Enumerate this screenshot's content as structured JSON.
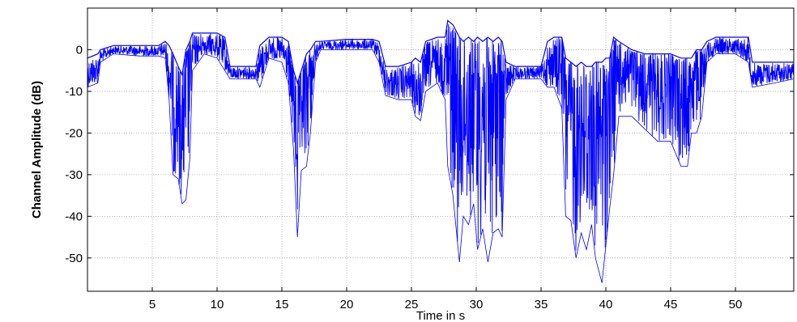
{
  "chart_data": {
    "type": "line",
    "title": "",
    "xlabel": "Time in s",
    "ylabel": "Channel Amplitude (dB)",
    "xlim": [
      0,
      54.5
    ],
    "ylim": [
      -58,
      10
    ],
    "xticks": [
      5,
      10,
      15,
      20,
      25,
      30,
      35,
      40,
      45,
      50
    ],
    "yticks": [
      0,
      -10,
      -20,
      -30,
      -40,
      -50
    ],
    "grid": true,
    "color": "#0000ff",
    "series": [
      {
        "name": "",
        "envelope": [
          {
            "t": 0.0,
            "upper": -2,
            "lower": -9
          },
          {
            "t": 0.8,
            "upper": -1,
            "lower": -8
          },
          {
            "t": 1.0,
            "upper": 0,
            "lower": -3
          },
          {
            "t": 2.0,
            "upper": 1,
            "lower": -1
          },
          {
            "t": 4.0,
            "upper": 1,
            "lower": -1.5
          },
          {
            "t": 5.5,
            "upper": 1,
            "lower": -1.5
          },
          {
            "t": 6.0,
            "upper": 2,
            "lower": -2
          },
          {
            "t": 6.3,
            "upper": 1,
            "lower": -12
          },
          {
            "t": 6.6,
            "upper": -1,
            "lower": -30
          },
          {
            "t": 7.0,
            "upper": -4,
            "lower": -31
          },
          {
            "t": 7.3,
            "upper": -6,
            "lower": -37
          },
          {
            "t": 7.6,
            "upper": 0,
            "lower": -36
          },
          {
            "t": 7.9,
            "upper": 2,
            "lower": -26
          },
          {
            "t": 8.1,
            "upper": 4,
            "lower": -5
          },
          {
            "t": 9.0,
            "upper": 4,
            "lower": -1
          },
          {
            "t": 10.0,
            "upper": 4,
            "lower": -2
          },
          {
            "t": 10.6,
            "upper": 3,
            "lower": -5
          },
          {
            "t": 11.0,
            "upper": -4,
            "lower": -7
          },
          {
            "t": 12.0,
            "upper": -4,
            "lower": -7
          },
          {
            "t": 13.0,
            "upper": -4,
            "lower": -7
          },
          {
            "t": 13.3,
            "upper": 1,
            "lower": -9
          },
          {
            "t": 14.0,
            "upper": 3,
            "lower": -2
          },
          {
            "t": 15.0,
            "upper": 3,
            "lower": -3
          },
          {
            "t": 15.5,
            "upper": 2,
            "lower": -8
          },
          {
            "t": 15.9,
            "upper": -5,
            "lower": -24
          },
          {
            "t": 16.2,
            "upper": -8,
            "lower": -45
          },
          {
            "t": 16.5,
            "upper": -5,
            "lower": -29
          },
          {
            "t": 16.9,
            "upper": -1,
            "lower": -28
          },
          {
            "t": 17.2,
            "upper": 0,
            "lower": -20
          },
          {
            "t": 17.6,
            "upper": 2,
            "lower": -3
          },
          {
            "t": 18.0,
            "upper": 2,
            "lower": 0
          },
          {
            "t": 20.0,
            "upper": 2.5,
            "lower": 0
          },
          {
            "t": 22.0,
            "upper": 2.5,
            "lower": 0
          },
          {
            "t": 22.5,
            "upper": 2,
            "lower": -3
          },
          {
            "t": 23.0,
            "upper": -4,
            "lower": -11
          },
          {
            "t": 24.0,
            "upper": -4,
            "lower": -12
          },
          {
            "t": 25.0,
            "upper": -3,
            "lower": -12
          },
          {
            "t": 25.3,
            "upper": -2,
            "lower": -16
          },
          {
            "t": 25.7,
            "upper": -3,
            "lower": -17
          },
          {
            "t": 26.1,
            "upper": 2,
            "lower": -10
          },
          {
            "t": 27.0,
            "upper": 3,
            "lower": -8
          },
          {
            "t": 27.6,
            "upper": 3,
            "lower": -12
          },
          {
            "t": 27.8,
            "upper": 7,
            "lower": -28
          },
          {
            "t": 28.2,
            "upper": 6,
            "lower": -35
          },
          {
            "t": 28.7,
            "upper": 3,
            "lower": -51
          },
          {
            "t": 29.0,
            "upper": 2,
            "lower": -40
          },
          {
            "t": 29.4,
            "upper": 3,
            "lower": -42
          },
          {
            "t": 29.8,
            "upper": 2,
            "lower": -37
          },
          {
            "t": 30.1,
            "upper": 3,
            "lower": -48
          },
          {
            "t": 30.5,
            "upper": 2,
            "lower": -43
          },
          {
            "t": 30.9,
            "upper": 3,
            "lower": -51
          },
          {
            "t": 31.3,
            "upper": 2,
            "lower": -44
          },
          {
            "t": 31.7,
            "upper": 3,
            "lower": -43
          },
          {
            "t": 32.0,
            "upper": 2,
            "lower": -45
          },
          {
            "t": 32.3,
            "upper": -3,
            "lower": -12
          },
          {
            "t": 33.0,
            "upper": -4,
            "lower": -7
          },
          {
            "t": 34.0,
            "upper": -4,
            "lower": -7
          },
          {
            "t": 35.0,
            "upper": -4,
            "lower": -7
          },
          {
            "t": 35.5,
            "upper": 2,
            "lower": -9
          },
          {
            "t": 36.0,
            "upper": 3,
            "lower": -9
          },
          {
            "t": 36.6,
            "upper": 3,
            "lower": -14
          },
          {
            "t": 36.9,
            "upper": -2,
            "lower": -40
          },
          {
            "t": 37.3,
            "upper": -3,
            "lower": -41
          },
          {
            "t": 37.7,
            "upper": -4,
            "lower": -50
          },
          {
            "t": 38.1,
            "upper": -3,
            "lower": -44
          },
          {
            "t": 38.5,
            "upper": -4,
            "lower": -48
          },
          {
            "t": 38.9,
            "upper": -4,
            "lower": -42
          },
          {
            "t": 39.2,
            "upper": -3,
            "lower": -50
          },
          {
            "t": 39.7,
            "upper": -3,
            "lower": -56
          },
          {
            "t": 40.0,
            "upper": -2,
            "lower": -47
          },
          {
            "t": 40.3,
            "upper": -2,
            "lower": -38
          },
          {
            "t": 40.6,
            "upper": 3,
            "lower": -30
          },
          {
            "t": 41.0,
            "upper": 2,
            "lower": -16
          },
          {
            "t": 42.0,
            "upper": 0,
            "lower": -16
          },
          {
            "t": 43.0,
            "upper": -1,
            "lower": -19
          },
          {
            "t": 44.0,
            "upper": -1,
            "lower": -22
          },
          {
            "t": 45.0,
            "upper": -1,
            "lower": -22
          },
          {
            "t": 45.8,
            "upper": -2,
            "lower": -28
          },
          {
            "t": 46.3,
            "upper": -2,
            "lower": -28
          },
          {
            "t": 46.6,
            "upper": -2,
            "lower": -20
          },
          {
            "t": 47.0,
            "upper": 0,
            "lower": -20
          },
          {
            "t": 47.4,
            "upper": 0,
            "lower": -16
          },
          {
            "t": 47.8,
            "upper": 2,
            "lower": -3
          },
          {
            "t": 48.5,
            "upper": 3,
            "lower": -1
          },
          {
            "t": 50.0,
            "upper": 3,
            "lower": -1
          },
          {
            "t": 51.0,
            "upper": 3,
            "lower": -3
          },
          {
            "t": 51.3,
            "upper": -3,
            "lower": -9
          },
          {
            "t": 53.0,
            "upper": -3,
            "lower": -8
          },
          {
            "t": 54.5,
            "upper": -3,
            "lower": -7
          }
        ]
      }
    ]
  }
}
